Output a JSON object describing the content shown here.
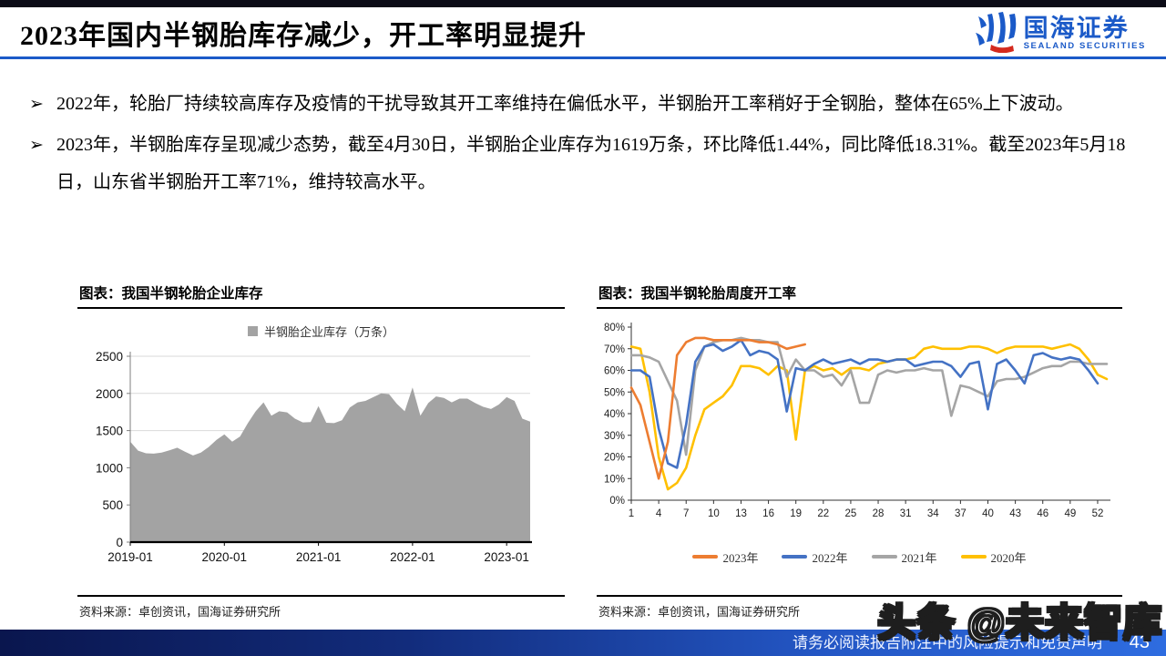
{
  "header": {
    "title": "2023年国内半钢胎库存减少，开工率明显提升",
    "logo_cn": "国海证券",
    "logo_en": "SEALAND SECURITIES"
  },
  "bullets": [
    {
      "marker": "➢",
      "text": "2022年，轮胎厂持续较高库存及疫情的干扰导致其开工率维持在偏低水平，半钢胎开工率稍好于全钢胎，整体在65%上下波动。"
    },
    {
      "marker": "➢",
      "text": "2023年，半钢胎库存呈现减少态势，截至4月30日，半钢胎企业库存为1619万条，环比降低1.44%，同比降低18.31%。截至2023年5月18日，山东省半钢胎开工率71%，维持较高水平。"
    }
  ],
  "colors": {
    "accent_blue": "#1b5ac8",
    "area_gray": "#a3a3a3",
    "grid_gray": "#d9d9d9",
    "series_2023": "#ED7D31",
    "series_2022": "#4472C4",
    "series_2021": "#A5A5A5",
    "series_2020": "#FFC000"
  },
  "chart_data": [
    {
      "type": "area",
      "title": "图表：我国半钢轮胎企业库存",
      "legend": "半钢胎企业库存（万条）",
      "source": "资料来源：卓创资讯，国海证券研究所",
      "fill_color": "#a3a3a3",
      "ylim": [
        0,
        2500
      ],
      "yticks": [
        0,
        500,
        1000,
        1500,
        2000,
        2500
      ],
      "x_tick_labels": [
        "2019-01",
        "2020-01",
        "2021-01",
        "2022-01",
        "2023-01"
      ],
      "x_tick_indices": [
        0,
        12,
        24,
        36,
        48
      ],
      "grid": true,
      "values": [
        1350,
        1230,
        1195,
        1190,
        1205,
        1235,
        1270,
        1215,
        1165,
        1205,
        1280,
        1375,
        1450,
        1350,
        1420,
        1600,
        1760,
        1880,
        1700,
        1760,
        1745,
        1660,
        1610,
        1615,
        1830,
        1605,
        1600,
        1640,
        1810,
        1880,
        1900,
        1950,
        2000,
        1990,
        1860,
        1760,
        2080,
        1700,
        1870,
        1960,
        1940,
        1880,
        1930,
        1930,
        1870,
        1820,
        1790,
        1850,
        1950,
        1900,
        1660,
        1620
      ]
    },
    {
      "type": "line",
      "title": "图表：我国半钢轮胎周度开工率",
      "source": "资料来源：卓创资讯，国海证券研究所",
      "ylim": [
        0,
        80
      ],
      "ytick_step": 10,
      "ytick_suffix": "%",
      "x_range": [
        1,
        53
      ],
      "xticks": [
        1,
        4,
        7,
        10,
        13,
        16,
        19,
        22,
        25,
        28,
        31,
        34,
        37,
        40,
        43,
        46,
        49,
        52
      ],
      "grid": false,
      "legend_position": "bottom",
      "series": [
        {
          "name": "2023年",
          "color": "#ED7D31",
          "start_week": 1,
          "values": [
            52,
            44,
            27,
            10,
            27,
            67,
            73,
            75,
            75,
            74,
            74,
            74,
            74,
            74,
            73,
            73,
            72,
            70,
            71,
            72
          ]
        },
        {
          "name": "2022年",
          "color": "#4472C4",
          "start_week": 1,
          "values": [
            60,
            60,
            57,
            33,
            17,
            15,
            35,
            64,
            71,
            72,
            69,
            71,
            74,
            67,
            69,
            68,
            65,
            41,
            61,
            60,
            63,
            65,
            63,
            64,
            65,
            63,
            65,
            65,
            64,
            65,
            65,
            62,
            63,
            64,
            64,
            62,
            57,
            63,
            64,
            42,
            63,
            65,
            60,
            54,
            67,
            68,
            66,
            65,
            66,
            65,
            60,
            54
          ]
        },
        {
          "name": "2021年",
          "color": "#A5A5A5",
          "start_week": 1,
          "values": [
            67,
            67,
            66,
            64,
            55,
            46,
            21,
            60,
            71,
            73,
            74,
            74,
            75,
            74,
            74,
            73,
            73,
            57,
            65,
            60,
            60,
            57,
            58,
            53,
            60,
            45,
            45,
            58,
            60,
            59,
            60,
            60,
            61,
            60,
            60,
            39,
            53,
            52,
            50,
            48,
            55,
            56,
            56,
            57,
            59,
            61,
            62,
            62,
            64,
            64,
            63,
            63,
            63
          ]
        },
        {
          "name": "2020年",
          "color": "#FFC000",
          "start_week": 1,
          "values": [
            71,
            70,
            50,
            20,
            5,
            8,
            15,
            30,
            42,
            45,
            48,
            53,
            62,
            62,
            61,
            58,
            62,
            60,
            28,
            60,
            62,
            60,
            61,
            58,
            61,
            61,
            60,
            63,
            64,
            65,
            65,
            66,
            70,
            71,
            70,
            70,
            70,
            71,
            71,
            70,
            68,
            70,
            71,
            71,
            71,
            71,
            70,
            71,
            72,
            70,
            65,
            58,
            56
          ]
        }
      ]
    }
  ],
  "watermark": {
    "text": "头条 @未来智库"
  },
  "footer": {
    "disclaimer": "请务必阅读报告附注中的风险提示和免责声明",
    "page": "43"
  }
}
